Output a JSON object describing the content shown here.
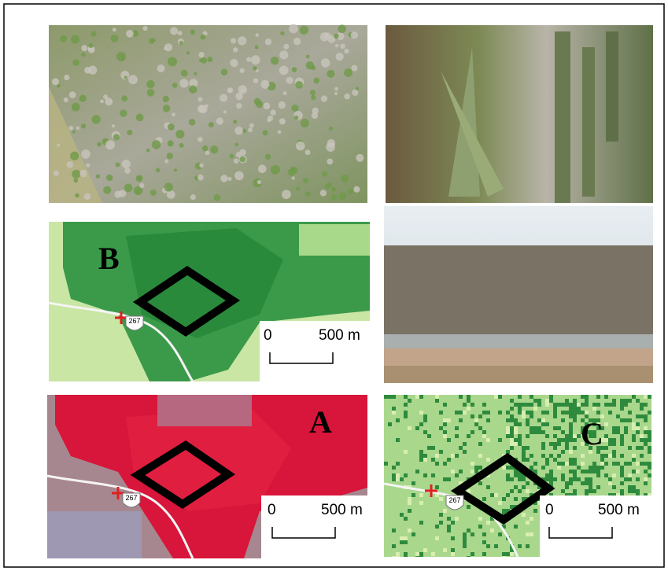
{
  "panels": [
    {
      "label": "B",
      "scale_bar": {
        "start": "0",
        "end": "500 m"
      },
      "route": "267"
    },
    {
      "label": "A",
      "scale_bar": {
        "start": "0",
        "end": "500 m"
      },
      "route": "267"
    },
    {
      "label": "C",
      "scale_bar": {
        "start": "0",
        "end": "500 m"
      },
      "route": "267"
    }
  ]
}
